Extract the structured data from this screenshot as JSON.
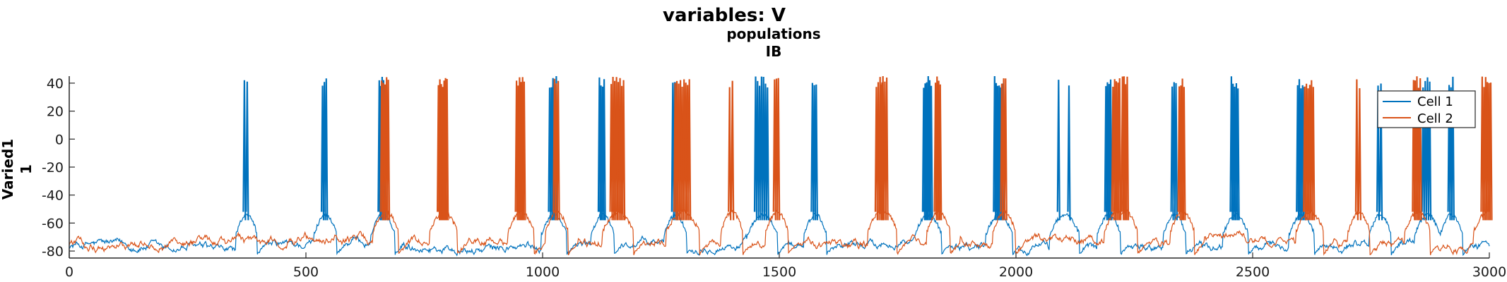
{
  "chart_data": {
    "type": "line",
    "title": "variables: V",
    "subtitle_line1": "populations",
    "subtitle_line2": "IB",
    "ylabel_line1": "Varied1",
    "ylabel_line2": "1",
    "xlim": [
      0,
      3000
    ],
    "ylim": [
      -85,
      45
    ],
    "x_ticks": [
      "0",
      "500",
      "1000",
      "1500",
      "2000",
      "2500",
      "3000"
    ],
    "y_ticks": [
      "40",
      "20",
      "0",
      "-20",
      "-40",
      "-60",
      "-80"
    ],
    "grid": false,
    "legend_position": "top-right",
    "series": [
      {
        "name": "Cell 1",
        "color": "#0072BD",
        "baseline": -76,
        "bursts": [
          {
            "t": 370,
            "n": 2,
            "w": 6
          },
          {
            "t": 535,
            "n": 3,
            "w": 8
          },
          {
            "t": 655,
            "n": 5,
            "w": 12
          },
          {
            "t": 1015,
            "n": 5,
            "w": 14
          },
          {
            "t": 1120,
            "n": 4,
            "w": 10
          },
          {
            "t": 1275,
            "n": 3,
            "w": 8
          },
          {
            "t": 1450,
            "n": 7,
            "w": 25
          },
          {
            "t": 1570,
            "n": 3,
            "w": 8
          },
          {
            "t": 1805,
            "n": 6,
            "w": 16
          },
          {
            "t": 1955,
            "n": 6,
            "w": 16
          },
          {
            "t": 2090,
            "n": 2,
            "w": 22
          },
          {
            "t": 2190,
            "n": 4,
            "w": 10
          },
          {
            "t": 2330,
            "n": 3,
            "w": 8
          },
          {
            "t": 2455,
            "n": 5,
            "w": 14
          },
          {
            "t": 2595,
            "n": 5,
            "w": 14
          },
          {
            "t": 2765,
            "n": 2,
            "w": 6
          },
          {
            "t": 2860,
            "n": 4,
            "w": 14
          },
          {
            "t": 2915,
            "n": 3,
            "w": 8
          }
        ]
      },
      {
        "name": "Cell 2",
        "color": "#D95319",
        "baseline": -74,
        "bursts": [
          {
            "t": 660,
            "n": 5,
            "w": 14
          },
          {
            "t": 780,
            "n": 7,
            "w": 18
          },
          {
            "t": 945,
            "n": 6,
            "w": 16
          },
          {
            "t": 1025,
            "n": 3,
            "w": 8
          },
          {
            "t": 1145,
            "n": 8,
            "w": 26
          },
          {
            "t": 1280,
            "n": 9,
            "w": 30
          },
          {
            "t": 1395,
            "n": 2,
            "w": 6
          },
          {
            "t": 1490,
            "n": 3,
            "w": 8
          },
          {
            "t": 1705,
            "n": 4,
            "w": 12
          },
          {
            "t": 1715,
            "n": 4,
            "w": 12
          },
          {
            "t": 1830,
            "n": 4,
            "w": 10
          },
          {
            "t": 1970,
            "n": 3,
            "w": 8
          },
          {
            "t": 2205,
            "n": 5,
            "w": 14
          },
          {
            "t": 2225,
            "n": 4,
            "w": 10
          },
          {
            "t": 2345,
            "n": 4,
            "w": 10
          },
          {
            "t": 2610,
            "n": 6,
            "w": 18
          },
          {
            "t": 2720,
            "n": 2,
            "w": 6
          },
          {
            "t": 2840,
            "n": 5,
            "w": 14
          },
          {
            "t": 2985,
            "n": 6,
            "w": 18
          }
        ]
      }
    ]
  }
}
